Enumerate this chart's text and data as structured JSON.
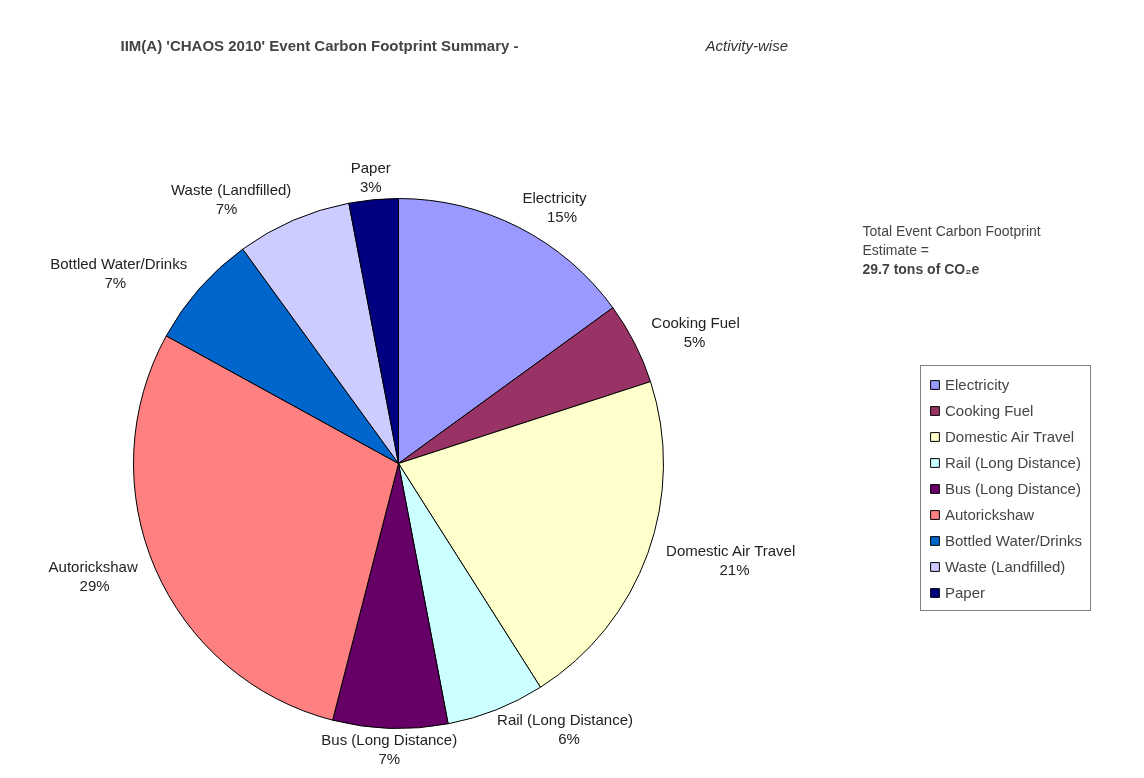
{
  "chart_data": {
    "type": "pie",
    "title": "IIM(A) 'CHAOS 2010' Event Carbon Footprint Summary -",
    "subtitle": "Activity-wise",
    "categories": [
      "Electricity",
      "Cooking Fuel",
      "Domestic Air Travel",
      "Rail (Long Distance)",
      "Bus (Long Distance)",
      "Autorickshaw",
      "Bottled Water/Drinks",
      "Waste (Landfilled)",
      "Paper"
    ],
    "values": [
      15,
      5,
      21,
      6,
      7,
      29,
      7,
      7,
      3
    ],
    "value_labels": [
      "15%",
      "5%",
      "21%",
      "6%",
      "7%",
      "29%",
      "7%",
      "7%",
      "3%"
    ],
    "colors": [
      "#9999ff",
      "#993366",
      "#ffffcc",
      "#ccffff",
      "#660066",
      "#ff8080",
      "#0066cc",
      "#ccccff",
      "#000080"
    ],
    "annotations": [
      "Total Event Carbon Footprint Estimate =",
      "29.7 tons of CO₂e"
    ],
    "legend": "right"
  }
}
